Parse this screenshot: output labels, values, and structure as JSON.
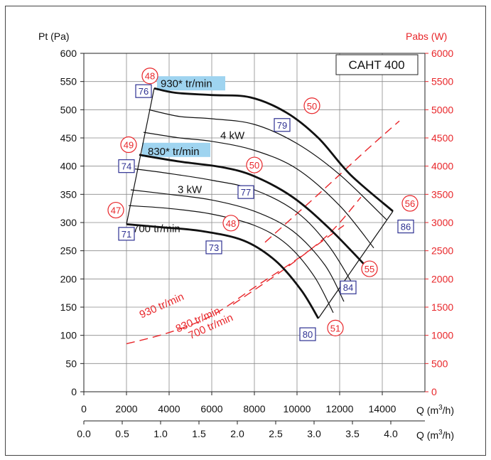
{
  "chart_data": {
    "type": "line",
    "title": "CAHT 400",
    "left_axis": {
      "label": "Pt (Pa)",
      "range": [
        0,
        600
      ],
      "ticks": [
        0,
        50,
        100,
        150,
        200,
        250,
        300,
        350,
        400,
        450,
        500,
        550,
        600
      ]
    },
    "right_axis": {
      "label": "Pabs (W)",
      "range": [
        0,
        6000
      ],
      "ticks": [
        0,
        500,
        1000,
        1500,
        2000,
        2500,
        3000,
        3500,
        4000,
        4500,
        5000,
        5500,
        6000
      ],
      "color": "#e8262a"
    },
    "x_axis_m3h": {
      "label": "Q (m³/h)",
      "label_main": "Q (m",
      "label_sup": "3",
      "label_end": "/h)",
      "range": [
        0,
        16000
      ],
      "ticks": [
        0,
        2000,
        4000,
        6000,
        8000,
        10000,
        12000,
        14000
      ]
    },
    "x_axis_m3s": {
      "label": "Q (m³/h)",
      "label_main": "Q (m",
      "label_sup": "3",
      "label_end": "/h)",
      "ticks": [
        "0.0",
        "0.5",
        "1.0",
        "1.5",
        "2.0",
        "2.5",
        "3.0",
        "3.5",
        "4.0"
      ]
    },
    "grid": true,
    "pressure_curves": [
      {
        "name": "930* tr/min",
        "highlight": true,
        "bold": true,
        "x": [
          3300,
          4300,
          6000,
          7800,
          9500,
          11000,
          12500,
          14500
        ],
        "y": [
          538,
          530,
          526,
          522,
          495,
          450,
          385,
          320
        ]
      },
      {
        "name": "",
        "x": [
          3050,
          4500,
          6000,
          8000,
          10000,
          12000,
          14200
        ],
        "y": [
          500,
          488,
          484,
          474,
          440,
          385,
          305
        ]
      },
      {
        "name": "4 kW",
        "x": [
          2800,
          4500,
          6000,
          8000,
          10000,
          12000,
          13600
        ],
        "y": [
          460,
          450,
          444,
          428,
          395,
          330,
          255
        ]
      },
      {
        "name": "830* tr/min",
        "highlight": true,
        "bold": true,
        "x": [
          2600,
          4500,
          6500,
          8000,
          9800,
          11500,
          13300
        ],
        "y": [
          420,
          408,
          398,
          382,
          345,
          290,
          220
        ]
      },
      {
        "name": "",
        "x": [
          2400,
          4000,
          6000,
          8000,
          10000,
          11500,
          12700
        ],
        "y": [
          395,
          387,
          375,
          358,
          318,
          258,
          185
        ]
      },
      {
        "name": "3 kW",
        "x": [
          2200,
          4000,
          6000,
          8000,
          9800,
          11300,
          12200
        ],
        "y": [
          358,
          350,
          340,
          320,
          285,
          225,
          160
        ]
      },
      {
        "name": "",
        "x": [
          2100,
          4000,
          6000,
          8000,
          9500,
          10800,
          11700
        ],
        "y": [
          330,
          325,
          315,
          295,
          262,
          205,
          140
        ]
      },
      {
        "name": "700 tr/min",
        "bold": true,
        "x": [
          2000,
          3500,
          5500,
          7500,
          9000,
          10200,
          11000
        ],
        "y": [
          297,
          292,
          285,
          268,
          232,
          180,
          130
        ]
      }
    ],
    "envelope": {
      "min_flow": {
        "x": [
          2000,
          3300
        ],
        "y": [
          297,
          538
        ]
      },
      "max_flow": {
        "x": [
          11000,
          14500
        ],
        "y": [
          130,
          320
        ]
      }
    },
    "power_curves": [
      {
        "name": "930 tr/min",
        "color": "#e8262a",
        "dashed": true,
        "x": [
          8500,
          11000,
          13300,
          14800
        ],
        "y": [
          2650,
          3500,
          4300,
          4800
        ]
      },
      {
        "name": "830 tr/min",
        "color": "#e8262a",
        "dashed": true,
        "x": [
          7000,
          9500,
          11500,
          13000
        ],
        "y": [
          1550,
          2200,
          2800,
          3450
        ]
      },
      {
        "name": "700 tr/min",
        "color": "#e8262a",
        "dashed": true,
        "x": [
          2000,
          4000,
          6000,
          8000,
          10000,
          12200
        ],
        "y": [
          850,
          1050,
          1350,
          1850,
          2350,
          2950
        ]
      }
    ],
    "annotations": {
      "blue_boxes": [
        {
          "text": "76",
          "x": 2800,
          "y": 533
        },
        {
          "text": "74",
          "x": 2000,
          "y": 400
        },
        {
          "text": "71",
          "x": 2000,
          "y": 280
        },
        {
          "text": "79",
          "x": 9300,
          "y": 473
        },
        {
          "text": "77",
          "x": 7600,
          "y": 354
        },
        {
          "text": "73",
          "x": 6100,
          "y": 256
        },
        {
          "text": "84",
          "x": 12400,
          "y": 185
        },
        {
          "text": "80",
          "x": 10500,
          "y": 102
        },
        {
          "text": "86",
          "x": 15100,
          "y": 293
        }
      ],
      "red_circles": [
        {
          "text": "48",
          "x": 3100,
          "y": 560
        },
        {
          "text": "49",
          "x": 2100,
          "y": 438
        },
        {
          "text": "47",
          "x": 1500,
          "y": 322
        },
        {
          "text": "50",
          "x": 10700,
          "y": 507
        },
        {
          "text": "50",
          "x": 8000,
          "y": 402
        },
        {
          "text": "48",
          "x": 6900,
          "y": 299
        },
        {
          "text": "55",
          "x": 13400,
          "y": 218
        },
        {
          "text": "51",
          "x": 11800,
          "y": 113
        },
        {
          "text": "56",
          "x": 15300,
          "y": 334
        }
      ]
    }
  }
}
